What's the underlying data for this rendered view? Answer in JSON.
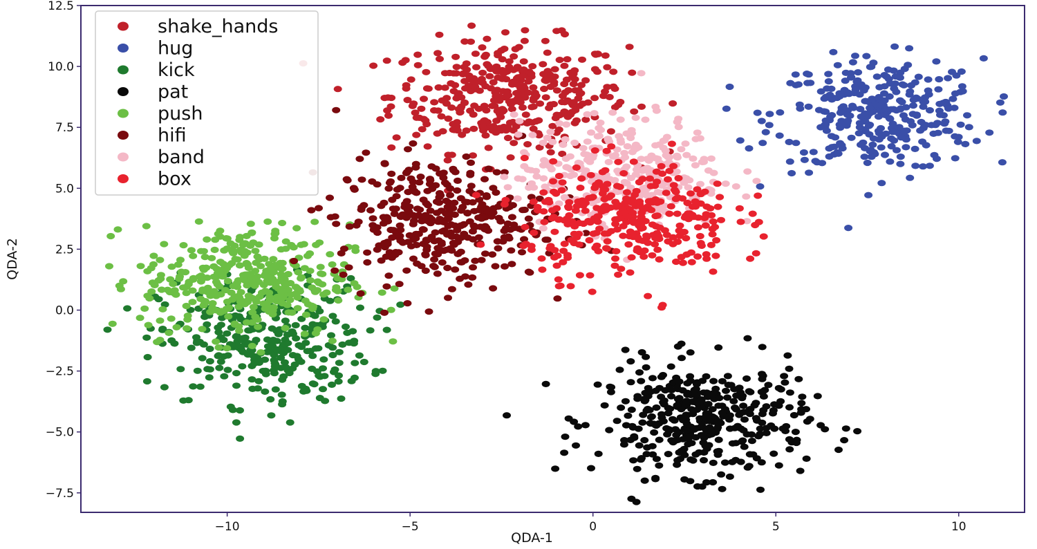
{
  "chart_data": {
    "type": "scatter",
    "xlabel": "QDA-1",
    "ylabel": "QDA-2",
    "xlim": [
      -14,
      11.8
    ],
    "ylim": [
      -8.3,
      12.5
    ],
    "xticks": [
      -10,
      -5,
      0,
      5,
      10
    ],
    "xtick_labels": [
      "−10",
      "−5",
      "0",
      "5",
      "10"
    ],
    "yticks": [
      12.5,
      10.0,
      7.5,
      5.0,
      2.5,
      0.0,
      -2.5,
      -5.0,
      -7.5
    ],
    "ytick_labels": [
      "12.5",
      "10.0",
      "7.5",
      "5.0",
      "2.5",
      "0.0",
      "−2.5",
      "−5.0",
      "−7.5"
    ],
    "grid": false,
    "legend_position": "top-left",
    "series": [
      {
        "name": "shake_hands",
        "color": "#c0202a",
        "center": [
          -2.3,
          8.8
        ],
        "spread": [
          1.7,
          1.0
        ],
        "points": 380
      },
      {
        "name": "hug",
        "color": "#3a4fa8",
        "center": [
          7.8,
          8.0
        ],
        "spread": [
          1.5,
          1.0
        ],
        "points": 330
      },
      {
        "name": "kick",
        "color": "#1f7a2e",
        "center": [
          -9.0,
          -1.3
        ],
        "spread": [
          1.5,
          1.1
        ],
        "points": 330
      },
      {
        "name": "pat",
        "color": "#0a0a0a",
        "center": [
          3.0,
          -4.5
        ],
        "spread": [
          1.5,
          1.0
        ],
        "points": 400
      },
      {
        "name": "push",
        "color": "#6cbf45",
        "center": [
          -9.5,
          1.2
        ],
        "spread": [
          1.5,
          1.0
        ],
        "points": 380
      },
      {
        "name": "hifi",
        "color": "#7a0a0e",
        "center": [
          -4.2,
          3.7
        ],
        "spread": [
          1.5,
          1.1
        ],
        "points": 380
      },
      {
        "name": "band",
        "color": "#f4b8c6",
        "center": [
          0.8,
          5.6
        ],
        "spread": [
          1.5,
          1.0
        ],
        "points": 330
      },
      {
        "name": "box",
        "color": "#e8222e",
        "center": [
          1.0,
          3.7
        ],
        "spread": [
          1.5,
          1.0
        ],
        "points": 330
      }
    ]
  }
}
